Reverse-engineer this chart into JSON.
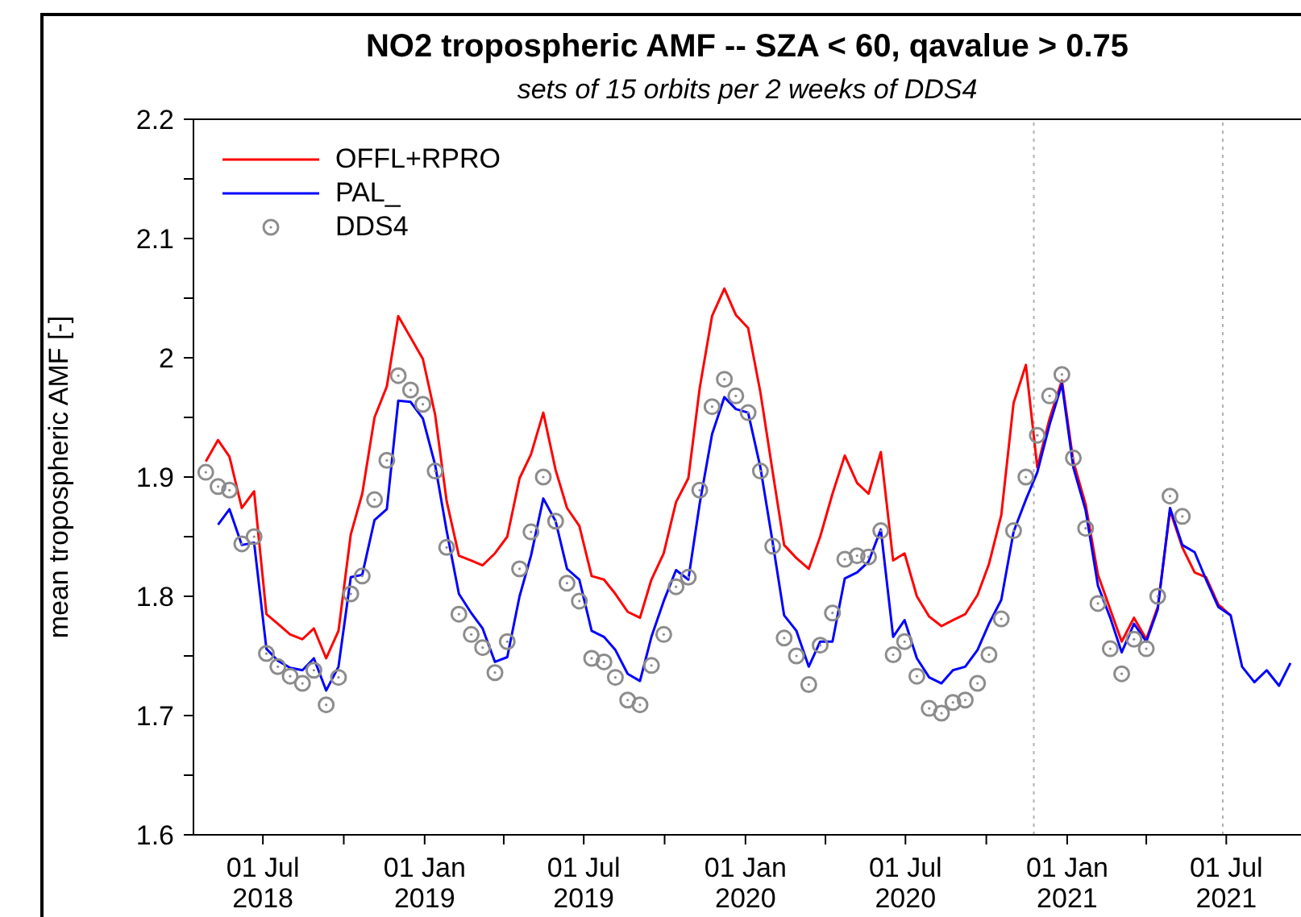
{
  "chart_data": {
    "type": "line",
    "title": "NO2 tropospheric AMF  --  SZA < 60, qavalue > 0.75",
    "subtitle": "sets of 15 orbits per 2 weeks of DDS4",
    "ylabel": "mean tropospheric AMF  [-]",
    "x": [
      "2018-04-27",
      "2018-05-11",
      "2018-05-24",
      "2018-06-07",
      "2018-06-21",
      "2018-07-05",
      "2018-07-18",
      "2018-08-01",
      "2018-08-15",
      "2018-08-28",
      "2018-09-11",
      "2018-09-25",
      "2018-10-09",
      "2018-10-22",
      "2018-11-05",
      "2018-11-19",
      "2018-12-02",
      "2018-12-16",
      "2018-12-30",
      "2019-01-13",
      "2019-01-26",
      "2019-02-09",
      "2019-02-23",
      "2019-03-08",
      "2019-03-22",
      "2019-04-05",
      "2019-04-19",
      "2019-05-02",
      "2019-05-16",
      "2019-05-30",
      "2019-06-12",
      "2019-06-26",
      "2019-07-10",
      "2019-07-24",
      "2019-08-06",
      "2019-08-20",
      "2019-09-03",
      "2019-09-16",
      "2019-09-30",
      "2019-10-14",
      "2019-10-28",
      "2019-11-10",
      "2019-11-24",
      "2019-12-08",
      "2019-12-21",
      "2020-01-04",
      "2020-01-18",
      "2020-02-01",
      "2020-02-14",
      "2020-02-28",
      "2020-03-13",
      "2020-03-26",
      "2020-04-09",
      "2020-04-23",
      "2020-05-07",
      "2020-05-20",
      "2020-06-03",
      "2020-06-17",
      "2020-06-30",
      "2020-07-14",
      "2020-07-28",
      "2020-08-11",
      "2020-08-24",
      "2020-09-07",
      "2020-09-21",
      "2020-10-04",
      "2020-10-18",
      "2020-11-01",
      "2020-11-15",
      "2020-11-28",
      "2020-12-12",
      "2020-12-26",
      "2021-01-08",
      "2021-01-22",
      "2021-02-05",
      "2021-02-19",
      "2021-03-04",
      "2021-03-18",
      "2021-04-01",
      "2021-04-14",
      "2021-04-28",
      "2021-05-12",
      "2021-05-26",
      "2021-06-08",
      "2021-06-22",
      "2021-07-06",
      "2021-07-19",
      "2021-08-02",
      "2021-08-16",
      "2021-08-30",
      "2021-09-12"
    ],
    "series": [
      {
        "name": "OFFL+RPRO",
        "color": "#ff0000",
        "values": [
          1.913,
          1.931,
          1.917,
          1.874,
          1.888,
          1.785,
          1.777,
          1.768,
          1.764,
          1.773,
          1.748,
          1.771,
          1.852,
          1.886,
          1.95,
          1.976,
          2.035,
          2.017,
          1.999,
          1.952,
          1.88,
          1.834,
          1.83,
          1.826,
          1.836,
          1.85,
          1.899,
          1.919,
          1.954,
          1.906,
          1.874,
          1.859,
          1.817,
          1.814,
          1.802,
          1.787,
          1.782,
          1.814,
          1.836,
          1.879,
          1.899,
          1.975,
          2.035,
          2.058,
          2.036,
          2.025,
          1.971,
          1.904,
          1.843,
          1.832,
          1.823,
          1.85,
          1.886,
          1.918,
          1.895,
          1.886,
          1.921,
          1.83,
          1.836,
          1.8,
          1.783,
          1.775,
          1.78,
          1.785,
          1.801,
          1.827,
          1.868,
          1.962,
          1.994,
          1.908,
          1.949,
          1.981,
          1.913,
          1.877,
          1.818,
          1.789,
          1.762,
          1.782,
          1.764,
          1.791,
          1.872,
          1.841,
          1.82,
          1.816,
          1.793,
          1.784,
          null,
          null,
          null,
          null,
          null
        ]
      },
      {
        "name": "PAL_",
        "color": "#0000ff",
        "values": [
          null,
          1.86,
          1.873,
          1.843,
          1.845,
          1.756,
          1.746,
          1.74,
          1.738,
          1.748,
          1.721,
          1.741,
          1.816,
          1.818,
          1.864,
          1.873,
          1.964,
          1.963,
          1.949,
          1.91,
          1.855,
          1.802,
          1.786,
          1.773,
          1.745,
          1.749,
          1.8,
          1.834,
          1.882,
          1.863,
          1.823,
          1.814,
          1.771,
          1.766,
          1.755,
          1.735,
          1.729,
          1.766,
          1.796,
          1.822,
          1.814,
          1.878,
          1.936,
          1.967,
          1.957,
          1.954,
          1.908,
          1.845,
          1.784,
          1.771,
          1.741,
          1.762,
          1.762,
          1.815,
          1.82,
          1.829,
          1.856,
          1.766,
          1.78,
          1.748,
          1.732,
          1.727,
          1.738,
          1.741,
          1.755,
          1.777,
          1.797,
          1.854,
          1.881,
          1.904,
          1.944,
          1.978,
          1.908,
          1.872,
          1.809,
          1.782,
          1.753,
          1.777,
          1.762,
          1.789,
          1.874,
          1.843,
          1.837,
          1.814,
          1.791,
          1.784,
          1.741,
          1.728,
          1.738,
          1.725,
          1.744
        ]
      },
      {
        "name": "DDS4",
        "type": "scatter",
        "marker": "circle",
        "color": "#8c8c8c",
        "values": [
          1.904,
          1.892,
          1.889,
          1.844,
          1.85,
          1.752,
          1.741,
          1.733,
          1.727,
          1.738,
          1.709,
          1.732,
          1.802,
          1.817,
          1.881,
          1.914,
          1.985,
          1.973,
          1.961,
          1.905,
          1.841,
          1.785,
          1.768,
          1.757,
          1.736,
          1.762,
          1.823,
          1.854,
          1.9,
          1.863,
          1.811,
          1.796,
          1.748,
          1.745,
          1.732,
          1.713,
          1.709,
          1.742,
          1.768,
          1.808,
          1.816,
          1.889,
          1.959,
          1.982,
          1.968,
          1.954,
          1.905,
          1.842,
          1.765,
          1.75,
          1.726,
          1.759,
          1.786,
          1.831,
          1.834,
          1.833,
          1.855,
          1.751,
          1.762,
          1.733,
          1.706,
          1.702,
          1.711,
          1.713,
          1.727,
          1.751,
          1.781,
          1.855,
          1.9,
          1.935,
          1.968,
          1.986,
          1.916,
          1.857,
          1.794,
          1.756,
          1.735,
          1.764,
          1.756,
          1.8,
          1.884,
          1.867,
          null,
          null,
          null,
          null,
          null,
          null,
          null,
          null,
          null
        ]
      }
    ],
    "xlim": [
      "2018-04-13",
      "2021-09-24"
    ],
    "xticks": [
      {
        "value": "2018-07-01",
        "label": "01 Jul\n2018"
      },
      {
        "value": "2018-10-01",
        "label": null
      },
      {
        "value": "2019-01-01",
        "label": "01 Jan\n2019"
      },
      {
        "value": "2019-04-01",
        "label": null
      },
      {
        "value": "2019-07-01",
        "label": "01 Jul\n2019"
      },
      {
        "value": "2019-10-01",
        "label": null
      },
      {
        "value": "2020-01-01",
        "label": "01 Jan\n2020"
      },
      {
        "value": "2020-04-01",
        "label": null
      },
      {
        "value": "2020-07-01",
        "label": "01 Jul\n2020"
      },
      {
        "value": "2020-10-01",
        "label": null
      },
      {
        "value": "2021-01-01",
        "label": "01 Jan\n2021"
      },
      {
        "value": "2021-04-01",
        "label": null
      },
      {
        "value": "2021-07-01",
        "label": "01 Jul\n2021"
      }
    ],
    "ylim": [
      1.6,
      2.2
    ],
    "yticks": [
      1.6,
      {
        "value": 1.65,
        "label": null
      },
      1.7,
      {
        "value": 1.75,
        "label": null
      },
      1.8,
      {
        "value": 1.85,
        "label": null
      },
      1.9,
      {
        "value": 1.95,
        "label": null
      },
      2,
      {
        "value": 2.05,
        "label": null
      },
      2.1,
      {
        "value": 2.15,
        "label": null
      },
      2.2
    ],
    "ref_lines": [
      {
        "axis": "x",
        "value": "2020-11-24",
        "color": "#b0b0b0",
        "line_style": "dotted"
      },
      {
        "axis": "x",
        "value": "2021-06-27",
        "color": "#b0b0b0",
        "line_style": "dotted"
      }
    ],
    "grid": false,
    "legend": "top left"
  }
}
